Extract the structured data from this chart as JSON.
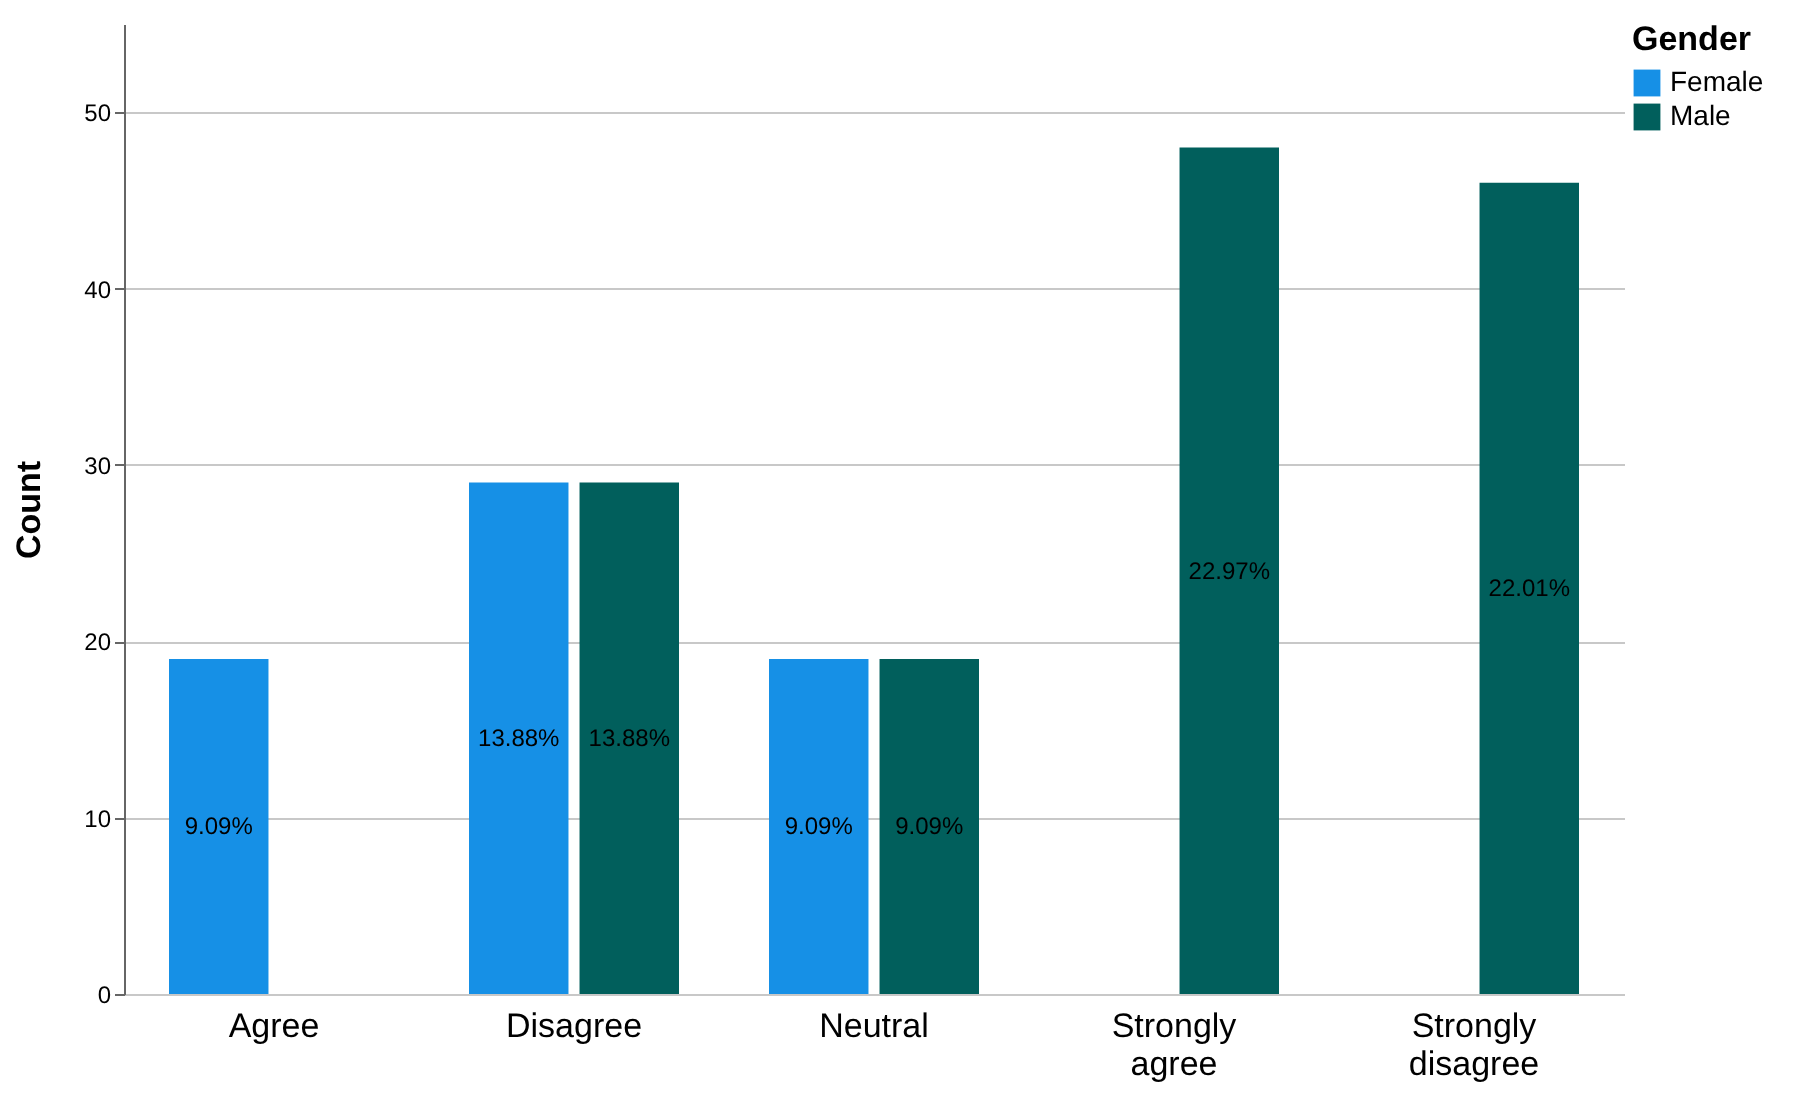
{
  "chart_data": {
    "type": "bar",
    "ylabel": "Count",
    "legend_title": "Gender",
    "categories": [
      "Agree",
      "Disagree",
      "Neutral",
      "Strongly agree",
      "Strongly disagree"
    ],
    "series": [
      {
        "name": "Female",
        "color": "#1690e6",
        "values": [
          19,
          29,
          19,
          null,
          null
        ]
      },
      {
        "name": "Male",
        "color": "#015f5c",
        "values": [
          null,
          29,
          19,
          48,
          46
        ]
      }
    ],
    "annotations": [
      {
        "text": "9.09%",
        "x": "Agree",
        "y": 9.5
      },
      {
        "text": "13.88%",
        "x": "Disagree",
        "y": 14.5
      },
      {
        "text": "13.88%",
        "x": "Disagree",
        "y": 14.5
      },
      {
        "text": "9.09%",
        "x": "Neutral",
        "y": 9.5
      },
      {
        "text": "9.09%",
        "x": "Neutral",
        "y": 9.5
      },
      {
        "text": "22.97%",
        "x": "Strongly agree",
        "y": 24
      },
      {
        "text": "22.01%",
        "x": "Strongly disagree",
        "y": 23
      }
    ],
    "ylim": [
      0,
      55
    ],
    "yticks": [
      0,
      10,
      20,
      30,
      40,
      50
    ],
    "grid": "y",
    "legend": "top right"
  }
}
